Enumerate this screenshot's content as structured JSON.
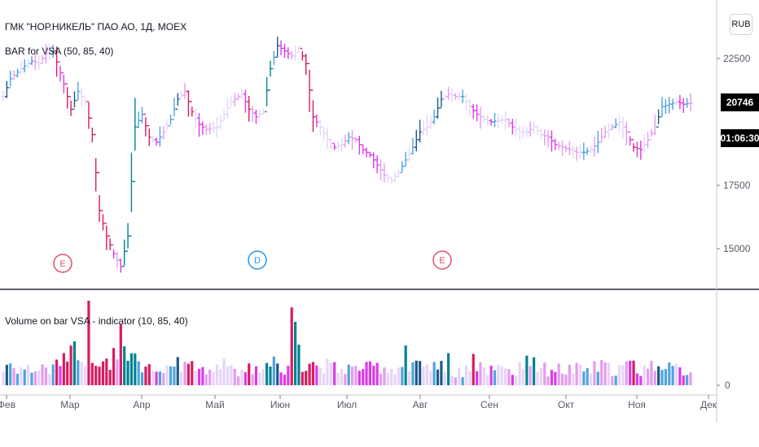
{
  "header": {
    "symbol_title": "ГМК \"НОР.НИКЕЛЬ\" ПАО АО, 1Д, MOEX",
    "indicator1_label": "BAR for VSA (50, 85, 40)",
    "indicator2_label": "Volume on bar VSA - indicator (10, 85, 40)",
    "currency_button": "RUB"
  },
  "price_axis": {
    "ticks": [
      "22500",
      "17500",
      "15000"
    ],
    "last_price": "20746",
    "countdown": "01:06:30"
  },
  "volume_axis": {
    "ticks": [
      "0"
    ]
  },
  "time_axis": {
    "ticks": [
      "Фев",
      "Мар",
      "Апр",
      "Май",
      "Июн",
      "Июл",
      "Авг",
      "Сен",
      "Окт",
      "Ноя",
      "Дек"
    ]
  },
  "events": [
    {
      "letter": "E",
      "color": "#e0506a"
    },
    {
      "letter": "D",
      "color": "#2196f3"
    },
    {
      "letter": "E",
      "color": "#e0506a"
    }
  ],
  "colors": {
    "dark_pink": "#d81b60",
    "magenta": "#da3be6",
    "light_magenta": "#e59bf0",
    "pale_lilac": "#e6d4f7",
    "teal": "#00838f",
    "light_blue": "#4fa3e0",
    "dark_blue": "#1e5a8a"
  },
  "chart_data": {
    "type": "bar",
    "title": "ГМК \"НОР.НИКЕЛЬ\" ПАО АО, 1Д, MOEX",
    "price_range": [
      13500,
      24000
    ],
    "price_path": [
      [
        0,
        21000
      ],
      [
        2,
        21700
      ],
      [
        5,
        22100
      ],
      [
        8,
        22400
      ],
      [
        10,
        22300
      ],
      [
        12,
        22700
      ],
      [
        14,
        22800
      ],
      [
        17,
        21500
      ],
      [
        19,
        20500
      ],
      [
        21,
        21200
      ],
      [
        23,
        20800
      ],
      [
        25,
        19500
      ],
      [
        27,
        16500
      ],
      [
        29,
        15500
      ],
      [
        31,
        14800
      ],
      [
        33,
        14300
      ],
      [
        35,
        15500
      ],
      [
        37,
        19800
      ],
      [
        39,
        20300
      ],
      [
        41,
        19400
      ],
      [
        43,
        19200
      ],
      [
        45,
        19600
      ],
      [
        47,
        20100
      ],
      [
        49,
        20900
      ],
      [
        51,
        21200
      ],
      [
        53,
        20400
      ],
      [
        55,
        19900
      ],
      [
        57,
        19700
      ],
      [
        60,
        19800
      ],
      [
        62,
        20300
      ],
      [
        64,
        20800
      ],
      [
        67,
        21100
      ],
      [
        69,
        20500
      ],
      [
        71,
        20200
      ],
      [
        73,
        20400
      ],
      [
        75,
        22100
      ],
      [
        77,
        23000
      ],
      [
        79,
        22800
      ],
      [
        81,
        22600
      ],
      [
        83,
        22900
      ],
      [
        85,
        22300
      ],
      [
        87,
        20200
      ],
      [
        89,
        19800
      ],
      [
        91,
        19300
      ],
      [
        93,
        19000
      ],
      [
        95,
        19100
      ],
      [
        97,
        19400
      ],
      [
        99,
        19300
      ],
      [
        101,
        18900
      ],
      [
        103,
        18700
      ],
      [
        105,
        18300
      ],
      [
        107,
        17900
      ],
      [
        109,
        17700
      ],
      [
        111,
        18000
      ],
      [
        113,
        18500
      ],
      [
        115,
        19000
      ],
      [
        117,
        19600
      ],
      [
        119,
        19800
      ],
      [
        121,
        20200
      ],
      [
        123,
        20900
      ],
      [
        125,
        21100
      ],
      [
        127,
        21000
      ],
      [
        129,
        21000
      ],
      [
        131,
        20600
      ],
      [
        133,
        20300
      ],
      [
        135,
        20100
      ],
      [
        137,
        20000
      ],
      [
        139,
        20050
      ],
      [
        141,
        20100
      ],
      [
        143,
        19800
      ],
      [
        145,
        19600
      ],
      [
        147,
        19600
      ],
      [
        149,
        19800
      ],
      [
        151,
        19500
      ],
      [
        153,
        19400
      ],
      [
        155,
        19100
      ],
      [
        157,
        19000
      ],
      [
        159,
        18900
      ],
      [
        161,
        18800
      ],
      [
        163,
        18800
      ],
      [
        165,
        18900
      ],
      [
        167,
        19200
      ],
      [
        169,
        19600
      ],
      [
        171,
        19800
      ],
      [
        173,
        20000
      ],
      [
        175,
        19600
      ],
      [
        177,
        19000
      ],
      [
        179,
        18900
      ],
      [
        181,
        19300
      ],
      [
        183,
        19800
      ],
      [
        185,
        20600
      ],
      [
        187,
        20700
      ],
      [
        189,
        20800
      ],
      [
        191,
        20700
      ],
      [
        193,
        20746
      ]
    ],
    "volume_range": [
      0,
      100
    ],
    "volume_spikes": [
      {
        "bar": 17,
        "value": 38
      },
      {
        "bar": 19,
        "value": 47
      },
      {
        "bar": 20,
        "value": 52
      },
      {
        "bar": 24,
        "value": 100
      },
      {
        "bar": 31,
        "value": 44
      },
      {
        "bar": 33,
        "value": 72
      },
      {
        "bar": 34,
        "value": 46
      },
      {
        "bar": 81,
        "value": 92
      },
      {
        "bar": 82,
        "value": 75
      },
      {
        "bar": 83,
        "value": 48
      },
      {
        "bar": 113,
        "value": 47
      },
      {
        "bar": 125,
        "value": 38
      },
      {
        "bar": 132,
        "value": 37
      },
      {
        "bar": 147,
        "value": 35
      },
      {
        "bar": 149,
        "value": 33
      }
    ]
  }
}
